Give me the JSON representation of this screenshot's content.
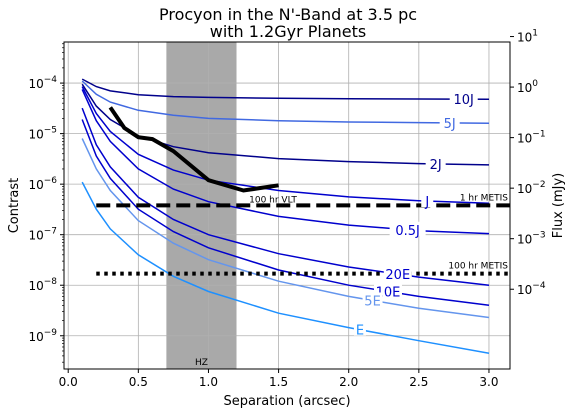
{
  "chart_data": {
    "type": "line",
    "title_lines": [
      "Procyon in the N'-Band at 3.5 pc",
      "with 1.2Gyr Planets"
    ],
    "xlabel": "Separation (arcsec)",
    "ylabel": "Contrast",
    "ylabel_right": "Flux (mJy)",
    "xlim": [
      -0.03,
      3.15
    ],
    "ylim": [
      2.2e-10,
      0.00065
    ],
    "yscale": "log",
    "grid": true,
    "x_ticks": [
      0.0,
      0.5,
      1.0,
      1.5,
      2.0,
      2.5,
      3.0
    ],
    "x_tick_labels": [
      "0.0",
      "0.5",
      "1.0",
      "1.5",
      "2.0",
      "2.5",
      "3.0"
    ],
    "y_ticks": [
      1e-09,
      1e-08,
      1e-07,
      1e-06,
      1e-05,
      0.0001
    ],
    "y_tick_labels": [
      {
        "base": "10",
        "exp": "−9"
      },
      {
        "base": "10",
        "exp": "−8"
      },
      {
        "base": "10",
        "exp": "−7"
      },
      {
        "base": "10",
        "exp": "−6"
      },
      {
        "base": "10",
        "exp": "−5"
      },
      {
        "base": "10",
        "exp": "−4"
      }
    ],
    "right_y_ticks": [
      0.0001,
      0.001,
      0.01,
      0.1,
      1,
      10
    ],
    "right_y_tick_labels": [
      {
        "base": "10",
        "exp": "−4"
      },
      {
        "base": "10",
        "exp": "−3"
      },
      {
        "base": "10",
        "exp": "−2"
      },
      {
        "base": "10",
        "exp": "−1"
      },
      {
        "base": "10",
        "exp": "0"
      },
      {
        "base": "10",
        "exp": "1"
      }
    ],
    "hz_band": {
      "x_start": 0.7,
      "x_end": 1.2,
      "label": "HZ",
      "color": "#a9a9a9"
    },
    "curves": [
      {
        "label": "10J",
        "color": "#00008b",
        "x": [
          0.1,
          0.2,
          0.3,
          0.5,
          0.75,
          1.0,
          1.5,
          2.0,
          2.5,
          3.0
        ],
        "y": [
          0.00012,
          8.5e-05,
          7e-05,
          5.9e-05,
          5.4e-05,
          5.2e-05,
          5e-05,
          4.9e-05,
          4.85e-05,
          4.8e-05
        ]
      },
      {
        "label": "5J",
        "color": "#4169e1",
        "x": [
          0.1,
          0.2,
          0.3,
          0.5,
          0.75,
          1.0,
          1.5,
          2.0,
          2.5,
          3.0
        ],
        "y": [
          0.00011,
          6e-05,
          4.2e-05,
          2.9e-05,
          2.3e-05,
          2e-05,
          1.8e-05,
          1.7e-05,
          1.65e-05,
          1.6e-05
        ]
      },
      {
        "label": "2J",
        "color": "#00008b",
        "x": [
          0.1,
          0.2,
          0.3,
          0.5,
          0.75,
          1.0,
          1.5,
          2.0,
          2.5,
          3.0
        ],
        "y": [
          9.5e-05,
          3.5e-05,
          1.9e-05,
          9e-06,
          5.5e-06,
          4.2e-06,
          3.2e-06,
          2.8e-06,
          2.55e-06,
          2.4e-06
        ]
      },
      {
        "label": "J",
        "color": "#0000cd",
        "x": [
          0.1,
          0.2,
          0.3,
          0.5,
          0.75,
          1.0,
          1.5,
          2.0,
          2.5,
          3.0
        ],
        "y": [
          8.5e-05,
          2.5e-05,
          1.1e-05,
          3.9e-06,
          1.9e-06,
          1.2e-06,
          7.5e-07,
          5.6e-07,
          4.7e-07,
          4.2e-07
        ]
      },
      {
        "label": "0.5J",
        "color": "#0000cd",
        "x": [
          0.1,
          0.2,
          0.3,
          0.5,
          0.75,
          1.0,
          1.5,
          2.0,
          2.5,
          3.0
        ],
        "y": [
          7.5e-05,
          1.8e-05,
          7e-06,
          2e-06,
          8e-07,
          4.5e-07,
          2.3e-07,
          1.55e-07,
          1.2e-07,
          1.05e-07
        ]
      },
      {
        "label": "20E",
        "color": "#0000cd",
        "x": [
          0.1,
          0.2,
          0.3,
          0.5,
          0.75,
          1.0,
          1.5,
          2.0,
          2.5,
          3.0
        ],
        "y": [
          3.2e-05,
          6e-06,
          2.2e-06,
          5.5e-07,
          2e-07,
          1e-07,
          4.2e-08,
          2.3e-08,
          1.45e-08,
          1e-08
        ]
      },
      {
        "label": "10E",
        "color": "#0000cd",
        "x": [
          0.1,
          0.2,
          0.3,
          0.5,
          0.75,
          1.0,
          1.5,
          2.0,
          2.5,
          3.0
        ],
        "y": [
          1.9e-05,
          3.6e-06,
          1.3e-06,
          3.2e-07,
          1.15e-07,
          5.5e-08,
          2e-08,
          1e-08,
          6e-09,
          4e-09
        ]
      },
      {
        "label": "5E",
        "color": "#6495ed",
        "x": [
          0.1,
          0.2,
          0.3,
          0.5,
          0.75,
          1.0,
          1.5,
          2.0,
          2.5,
          3.0
        ],
        "y": [
          8e-06,
          2e-06,
          7.5e-07,
          1.9e-07,
          6.8e-08,
          3.2e-08,
          1.2e-08,
          6e-09,
          3.5e-09,
          2.3e-09
        ]
      },
      {
        "label": "E",
        "color": "#1e90ff",
        "x": [
          0.1,
          0.2,
          0.3,
          0.5,
          0.75,
          1.0,
          1.5,
          2.0,
          2.5,
          3.0
        ],
        "y": [
          1.1e-06,
          3.2e-07,
          1.3e-07,
          4e-08,
          1.5e-08,
          7.5e-09,
          2.8e-09,
          1.45e-09,
          8e-10,
          4.5e-10
        ]
      }
    ],
    "sensitivity_lines": [
      {
        "label": "1 hr METIS",
        "style": "dashed",
        "y": 3.8e-07,
        "x_start": 0.2,
        "x_end": 3.15
      },
      {
        "label": "100 hr METIS",
        "style": "dotted",
        "y": 1.7e-08,
        "x_start": 0.2,
        "x_end": 3.15
      }
    ],
    "vlt_curve": {
      "label": "100 hr VLT",
      "x": [
        0.3,
        0.4,
        0.5,
        0.6,
        0.75,
        1.0,
        1.25,
        1.5
      ],
      "y": [
        3.3e-05,
        1.3e-05,
        8.5e-06,
        7.8e-06,
        4.5e-06,
        1.2e-06,
        7.5e-07,
        9.5e-07
      ]
    }
  }
}
